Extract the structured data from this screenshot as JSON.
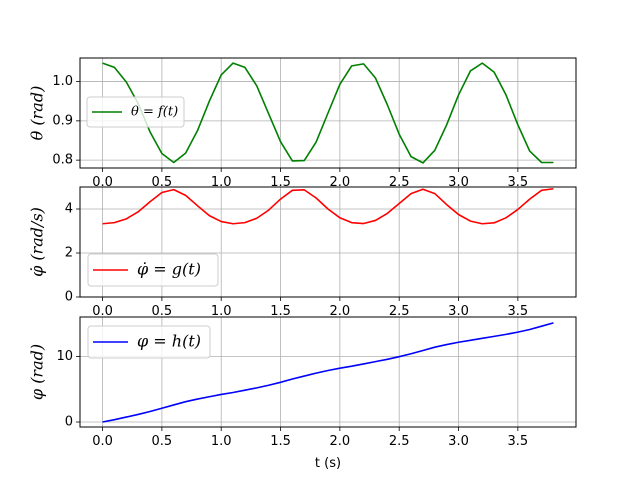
{
  "chart_data": [
    {
      "type": "line",
      "ylabel": "θ  (rad)",
      "xlim": [
        -0.19,
        3.99
      ],
      "ylim": [
        0.78,
        1.06
      ],
      "xticks": [
        "0.0",
        "0.5",
        "1.0",
        "1.5",
        "2.0",
        "2.5",
        "3.0",
        "3.5"
      ],
      "yticks": [
        "0.8",
        "0.9",
        "1.0"
      ],
      "grid": true,
      "legend": "left",
      "series": [
        {
          "name": "θ = f(t)",
          "color": "#008000",
          "x": [
            0.0,
            0.1,
            0.2,
            0.3,
            0.4,
            0.5,
            0.6,
            0.7,
            0.8,
            0.9,
            1.0,
            1.1,
            1.2,
            1.3,
            1.4,
            1.5,
            1.6,
            1.7,
            1.8,
            1.9,
            2.0,
            2.1,
            2.2,
            2.3,
            2.4,
            2.5,
            2.6,
            2.7,
            2.8,
            2.9,
            3.0,
            3.1,
            3.2,
            3.3,
            3.4,
            3.5,
            3.6,
            3.7,
            3.8
          ],
          "y": [
            1.047,
            1.036,
            0.999,
            0.944,
            0.872,
            0.817,
            0.794,
            0.818,
            0.875,
            0.95,
            1.017,
            1.047,
            1.036,
            0.989,
            0.918,
            0.847,
            0.798,
            0.799,
            0.846,
            0.92,
            0.993,
            1.04,
            1.045,
            1.009,
            0.941,
            0.866,
            0.809,
            0.793,
            0.825,
            0.89,
            0.966,
            1.027,
            1.047,
            1.024,
            0.966,
            0.89,
            0.823,
            0.794,
            0.794
          ]
        }
      ]
    },
    {
      "type": "line",
      "ylabel": "φ̇  (rad/s)",
      "xlim": [
        -0.19,
        3.99
      ],
      "ylim": [
        0,
        5.0
      ],
      "xticks": [
        "0.0",
        "0.5",
        "1.0",
        "1.5",
        "2.0",
        "2.5",
        "3.0",
        "3.5"
      ],
      "yticks": [
        "0",
        "2",
        "4"
      ],
      "grid": true,
      "legend": "bottom-left",
      "series": [
        {
          "name": "φ̇ = g(t)",
          "color": "#ff0000",
          "x": [
            0.0,
            0.1,
            0.2,
            0.3,
            0.4,
            0.5,
            0.6,
            0.7,
            0.8,
            0.9,
            1.0,
            1.1,
            1.2,
            1.3,
            1.4,
            1.5,
            1.6,
            1.7,
            1.8,
            1.9,
            2.0,
            2.1,
            2.2,
            2.3,
            2.4,
            2.5,
            2.6,
            2.7,
            2.8,
            2.9,
            3.0,
            3.1,
            3.2,
            3.3,
            3.4,
            3.5,
            3.6,
            3.7,
            3.8
          ],
          "y": [
            3.33,
            3.38,
            3.55,
            3.87,
            4.33,
            4.75,
            4.88,
            4.62,
            4.15,
            3.7,
            3.43,
            3.33,
            3.38,
            3.58,
            3.95,
            4.45,
            4.85,
            4.87,
            4.5,
            4.0,
            3.6,
            3.38,
            3.34,
            3.48,
            3.8,
            4.25,
            4.7,
            4.9,
            4.7,
            4.2,
            3.75,
            3.45,
            3.33,
            3.37,
            3.6,
            3.98,
            4.45,
            4.85,
            4.92
          ]
        }
      ]
    },
    {
      "type": "line",
      "xlabel": "t (s)",
      "ylabel": "φ  (rad)",
      "xlim": [
        -0.19,
        3.99
      ],
      "ylim": [
        -0.76,
        16.0
      ],
      "xticks": [
        "0.0",
        "0.5",
        "1.0",
        "1.5",
        "2.0",
        "2.5",
        "3.0",
        "3.5"
      ],
      "yticks": [
        "0",
        "10"
      ],
      "grid": true,
      "legend": "top-left",
      "series": [
        {
          "name": "φ = h(t)",
          "color": "#0000ff",
          "x": [
            0.0,
            0.1,
            0.2,
            0.3,
            0.4,
            0.5,
            0.6,
            0.7,
            0.8,
            0.9,
            1.0,
            1.1,
            1.2,
            1.3,
            1.4,
            1.5,
            1.6,
            1.7,
            1.8,
            1.9,
            2.0,
            2.1,
            2.2,
            2.3,
            2.4,
            2.5,
            2.6,
            2.7,
            2.8,
            2.9,
            3.0,
            3.1,
            3.2,
            3.3,
            3.4,
            3.5,
            3.6,
            3.7,
            3.8
          ],
          "y": [
            0.0,
            0.35,
            0.75,
            1.15,
            1.6,
            2.1,
            2.6,
            3.1,
            3.5,
            3.85,
            4.2,
            4.5,
            4.85,
            5.2,
            5.6,
            6.05,
            6.55,
            7.0,
            7.45,
            7.85,
            8.2,
            8.5,
            8.85,
            9.2,
            9.55,
            9.95,
            10.4,
            10.9,
            11.4,
            11.8,
            12.15,
            12.45,
            12.75,
            13.05,
            13.35,
            13.7,
            14.1,
            14.6,
            15.1
          ]
        }
      ]
    }
  ]
}
